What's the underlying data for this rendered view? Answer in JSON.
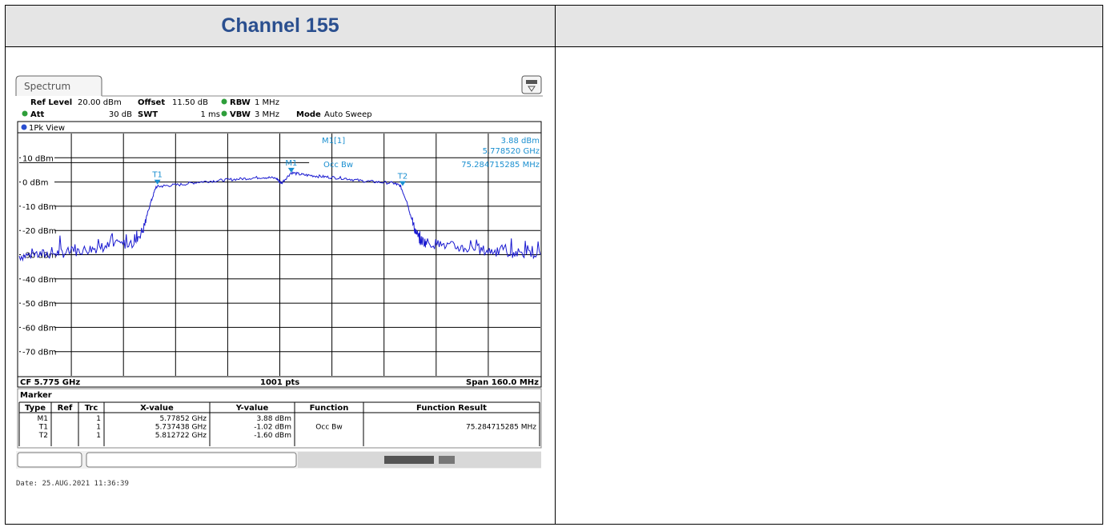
{
  "header": {
    "title": "Channel 155"
  },
  "instrument": {
    "tab": "Spectrum",
    "settings": {
      "ref_level_label": "Ref Level",
      "ref_level": "20.00 dBm",
      "offset_label": "Offset",
      "offset": "11.50 dB",
      "rbw_label": "RBW",
      "rbw": "1 MHz",
      "att_label": "Att",
      "att": "30 dB",
      "swt_label": "SWT",
      "swt": "1 ms",
      "vbw_label": "VBW",
      "vbw": "3 MHz",
      "mode_label": "Mode",
      "mode": "Auto Sweep"
    },
    "trace_label": "1Pk View",
    "colors": {
      "trace": "#1a1ad0",
      "marker": "#1a8fd0",
      "grid": "#000000"
    },
    "marker_readout": {
      "name": "M1[1]",
      "level": "3.88 dBm",
      "freq": "5.778520 GHz",
      "function": "Occ Bw",
      "result": "75.284715285 MHz"
    },
    "footer": {
      "cf": "CF 5.775 GHz",
      "pts": "1001 pts",
      "span": "Span 160.0 MHz"
    },
    "marker_table": {
      "title": "Marker",
      "headers": [
        "Type",
        "Ref",
        "Trc",
        "X-value",
        "Y-value",
        "Function",
        "Function Result"
      ],
      "rows": [
        [
          "M1",
          "",
          "1",
          "5.77852 GHz",
          "3.88 dBm",
          "",
          ""
        ],
        [
          "T1",
          "",
          "1",
          "5.737438 GHz",
          "-1.02 dBm",
          "Occ Bw",
          "75.284715285 MHz"
        ],
        [
          "T2",
          "",
          "1",
          "5.812722 GHz",
          "-1.60 dBm",
          "",
          ""
        ]
      ]
    },
    "date": "Date: 25.AUG.2021  11:36:39"
  },
  "chart_data": {
    "type": "line",
    "title": "",
    "xlabel": "",
    "ylabel": "",
    "x_unit": "GHz",
    "xlim": [
      5.695,
      5.855
    ],
    "ylim": [
      -80,
      20
    ],
    "y_ticks": [
      10,
      0,
      -10,
      -20,
      -30,
      -40,
      -50,
      -60,
      -70
    ],
    "y_tick_labels": [
      "10 dBm",
      "0 dBm",
      "-10 dBm",
      "-20 dBm",
      "-30 dBm",
      "-40 dBm",
      "-50 dBm",
      "-60 dBm",
      "-70 dBm"
    ],
    "grid": true,
    "series": [
      {
        "x": [
          5.695,
          5.7,
          5.705,
          5.71,
          5.715,
          5.72,
          5.725,
          5.73,
          5.733,
          5.735,
          5.737,
          5.74,
          5.745,
          5.75,
          5.755,
          5.76,
          5.765,
          5.77,
          5.774,
          5.7755,
          5.7785,
          5.782,
          5.786,
          5.79,
          5.795,
          5.8,
          5.805,
          5.81,
          5.812,
          5.814,
          5.816,
          5.818,
          5.82,
          5.825,
          5.83,
          5.835,
          5.84,
          5.845,
          5.85,
          5.855
        ],
        "y": [
          -30.5,
          -30,
          -29.5,
          -29,
          -28,
          -27,
          -26,
          -25,
          -20,
          -10,
          -2,
          -1.5,
          -1,
          0,
          0.5,
          1,
          1.5,
          2,
          1.5,
          -0.5,
          3.88,
          3,
          2.5,
          2,
          1.5,
          0.5,
          0,
          -0.5,
          -1.6,
          -8,
          -18,
          -24,
          -25,
          -26,
          -27,
          -28,
          -28.5,
          -29,
          -29.5,
          -30
        ]
      }
    ],
    "markers": [
      {
        "name": "M1",
        "x": 5.77852,
        "y": 3.88
      },
      {
        "name": "T1",
        "x": 5.737438,
        "y": -1.02
      },
      {
        "name": "T2",
        "x": 5.812722,
        "y": -1.6
      }
    ],
    "reference_line_y": 8
  }
}
